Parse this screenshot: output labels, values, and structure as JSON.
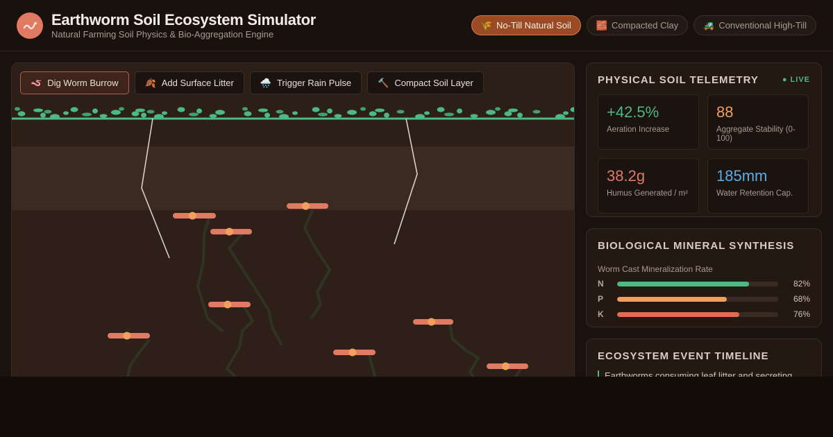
{
  "app": {
    "title": "Earthworm Soil Ecosystem Simulator",
    "subtitle": "Natural Farming Soil Physics & Bio-Aggregation Engine",
    "logo_icon": "worm-icon",
    "accent": "#e07a63"
  },
  "modes": [
    {
      "label": "No-Till Natural Soil",
      "icon": "🌾",
      "icon_name": "wheat-icon",
      "active": true
    },
    {
      "label": "Compacted Clay",
      "icon": "🧱",
      "icon_name": "brick-icon",
      "active": false
    },
    {
      "label": "Conventional High-Till",
      "icon": "🚜",
      "icon_name": "tractor-icon",
      "active": false
    }
  ],
  "tools": [
    {
      "label": "Dig Worm Burrow",
      "icon": "🪱",
      "icon_name": "worm-icon",
      "active": true
    },
    {
      "label": "Add Surface Litter",
      "icon": "🍂",
      "icon_name": "leaf-icon",
      "active": false
    },
    {
      "label": "Trigger Rain Pulse",
      "icon": "🌧️",
      "icon_name": "rain-cloud-icon",
      "active": false
    },
    {
      "label": "Compact Soil Layer",
      "icon": "🔨",
      "icon_name": "hammer-icon",
      "active": false
    }
  ],
  "telemetry": {
    "title": "Physical Soil Telemetry",
    "live_label": "● LIVE",
    "metrics": [
      {
        "value": "+42.5%",
        "label": "Aeration Increase",
        "color": "#4cb882"
      },
      {
        "value": "88",
        "label": "Aggregate Stability (0-100)",
        "color": "#f0a05e"
      },
      {
        "value": "38.2g",
        "label": "Humus Generated / m²",
        "color": "#e07a63"
      },
      {
        "value": "185mm",
        "label": "Water Retention Cap.",
        "color": "#5aaee6"
      }
    ]
  },
  "synthesis": {
    "title": "Biological Mineral Synthesis",
    "caption": "Worm Cast Mineralization Rate",
    "bars": [
      {
        "label": "N",
        "value": 82,
        "pct_text": "82%",
        "color": "#4cb882"
      },
      {
        "label": "P",
        "value": 68,
        "pct_text": "68%",
        "color": "#f0a05e"
      },
      {
        "label": "K",
        "value": 76,
        "pct_text": "76%",
        "color": "#e06c4f"
      }
    ]
  },
  "timeline": {
    "title": "Ecosystem Event Timeline",
    "events": [
      "Earthworms consuming leaf litter and secreting"
    ]
  },
  "colors": {
    "soil_top": "#2c1f18",
    "soil_band": "#3a2a21",
    "soil_deep": "#2e2019",
    "surface_line": "#4cb882",
    "burrow": "#2f3324",
    "worm": "#e07a63",
    "worm_head": "#f0a05e",
    "crack": "#d9cfc7"
  }
}
